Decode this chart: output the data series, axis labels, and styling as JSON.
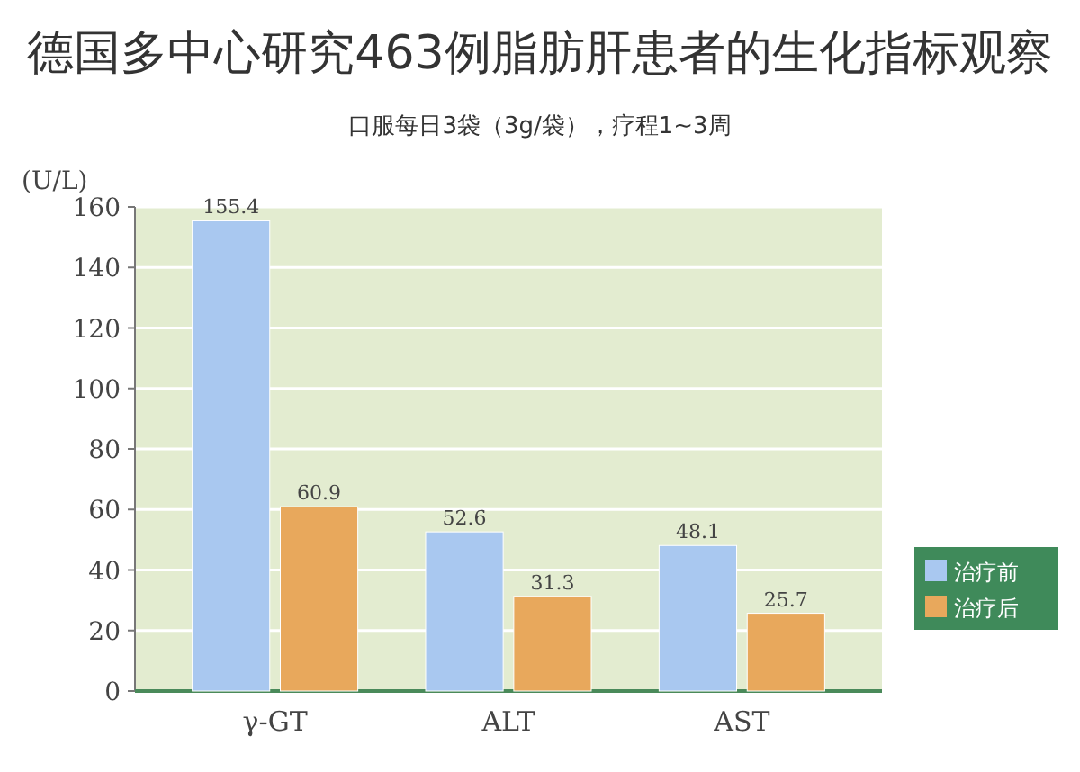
{
  "chart_data": {
    "type": "bar",
    "title": "德国多中心研究463例脂肪肝患者的生化指标观察",
    "subtitle": "口服每日3袋（3g/袋），疗程1~3周",
    "ylabel": "(U/L)",
    "categories": [
      "γ-GT",
      "ALT",
      "AST"
    ],
    "series": [
      {
        "name": "治疗前",
        "color": "#a9c8f0",
        "values": [
          155.4,
          52.6,
          48.1
        ]
      },
      {
        "name": "治疗后",
        "color": "#e8a85c",
        "values": [
          60.9,
          31.3,
          25.7
        ]
      }
    ],
    "ylim": [
      0,
      160
    ],
    "yticks": [
      0,
      20,
      40,
      60,
      80,
      100,
      120,
      140,
      160
    ],
    "grid": "y",
    "data_labels": true,
    "legend": "bottom right"
  }
}
